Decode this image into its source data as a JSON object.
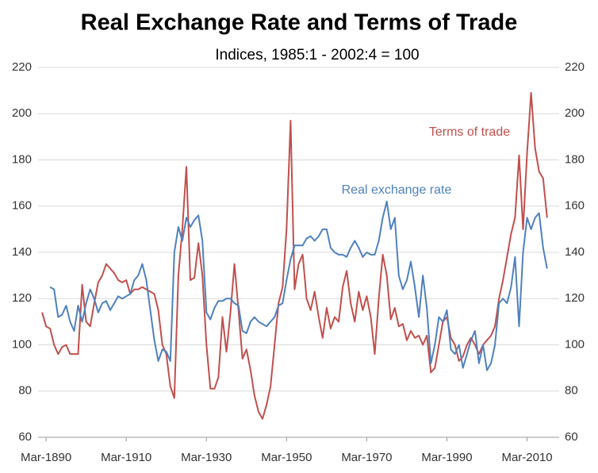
{
  "chart_data": {
    "type": "line",
    "title": "Real Exchange Rate and Terms of Trade",
    "subtitle": "Indices, 1985:1 - 2002:4 = 100",
    "x": [
      1889,
      1890,
      1891,
      1892,
      1893,
      1894,
      1895,
      1896,
      1897,
      1898,
      1899,
      1900,
      1901,
      1902,
      1903,
      1904,
      1905,
      1906,
      1907,
      1908,
      1909,
      1910,
      1911,
      1912,
      1913,
      1914,
      1915,
      1916,
      1917,
      1918,
      1919,
      1920,
      1921,
      1922,
      1923,
      1924,
      1925,
      1926,
      1927,
      1928,
      1929,
      1930,
      1931,
      1932,
      1933,
      1934,
      1935,
      1936,
      1937,
      1938,
      1939,
      1940,
      1941,
      1942,
      1943,
      1944,
      1945,
      1946,
      1947,
      1948,
      1949,
      1950,
      1951,
      1952,
      1953,
      1954,
      1955,
      1956,
      1957,
      1958,
      1959,
      1960,
      1961,
      1962,
      1963,
      1964,
      1965,
      1966,
      1967,
      1968,
      1969,
      1970,
      1971,
      1972,
      1973,
      1974,
      1975,
      1976,
      1977,
      1978,
      1979,
      1980,
      1981,
      1982,
      1983,
      1984,
      1985,
      1986,
      1987,
      1988,
      1989,
      1990,
      1991,
      1992,
      1993,
      1994,
      1995,
      1996,
      1997,
      1998,
      1999,
      2000,
      2001,
      2002,
      2003,
      2004,
      2005,
      2006,
      2007,
      2008,
      2009,
      2010,
      2011,
      2012,
      2013,
      2014,
      2015
    ],
    "series": [
      {
        "name": "Terms of trade",
        "color": "#c0504d",
        "values": [
          114,
          108,
          107,
          100,
          96,
          99,
          100,
          96,
          96,
          96,
          126,
          110,
          108,
          118,
          127,
          130,
          135,
          133,
          131,
          128,
          127,
          128,
          122,
          124,
          124,
          125,
          124,
          123,
          122,
          115,
          100,
          96,
          82,
          77,
          130,
          150,
          177,
          128,
          129,
          144,
          130,
          100,
          81,
          81,
          86,
          112,
          97,
          114,
          135,
          115,
          94,
          98,
          89,
          78,
          71,
          68,
          74,
          82,
          100,
          118,
          125,
          150,
          197,
          124,
          135,
          139,
          120,
          115,
          123,
          112,
          103,
          116,
          107,
          112,
          110,
          125,
          132,
          118,
          110,
          123,
          115,
          121,
          112,
          96,
          120,
          139,
          130,
          111,
          116,
          108,
          109,
          102,
          106,
          103,
          104,
          100,
          104,
          88,
          90,
          100,
          110,
          112,
          103,
          100,
          93,
          95,
          100,
          103,
          100,
          96,
          100,
          102,
          104,
          108,
          120,
          128,
          138,
          148,
          155,
          182,
          150,
          183,
          209,
          185,
          175,
          172,
          155
        ]
      },
      {
        "name": "Real exchange rate",
        "color": "#4f81bd",
        "values": [
          null,
          null,
          125,
          124,
          112,
          113,
          117,
          110,
          106,
          117,
          110,
          118,
          124,
          120,
          114,
          118,
          119,
          115,
          118,
          121,
          120,
          121,
          122,
          128,
          130,
          135,
          128,
          115,
          102,
          93,
          98,
          97,
          93,
          140,
          151,
          145,
          155,
          151,
          154,
          156,
          145,
          114,
          111,
          116,
          119,
          119,
          120,
          120,
          118,
          117,
          106,
          105,
          110,
          112,
          110,
          109,
          108,
          110,
          112,
          117,
          118,
          128,
          137,
          143,
          143,
          143,
          146,
          147,
          145,
          147,
          150,
          150,
          142,
          140,
          139,
          139,
          138,
          142,
          145,
          142,
          138,
          140,
          139,
          139,
          145,
          155,
          162,
          150,
          155,
          130,
          124,
          128,
          136,
          125,
          112,
          130,
          116,
          92,
          100,
          112,
          110,
          115,
          98,
          96,
          100,
          90,
          96,
          102,
          106,
          92,
          100,
          89,
          92,
          100,
          118,
          120,
          118,
          125,
          138,
          108,
          140,
          155,
          150,
          155,
          157,
          142,
          133
        ]
      }
    ],
    "xlim": [
      1888,
      2018
    ],
    "xticks": [
      {
        "value": 1890,
        "label": "Mar-1890"
      },
      {
        "value": 1910,
        "label": "Mar-1910"
      },
      {
        "value": 1930,
        "label": "Mar-1930"
      },
      {
        "value": 1950,
        "label": "Mar-1950"
      },
      {
        "value": 1970,
        "label": "Mar-1970"
      },
      {
        "value": 1990,
        "label": "Mar-1990"
      },
      {
        "value": 2010,
        "label": "Mar-2010"
      }
    ],
    "ylim": [
      60,
      220
    ],
    "yticks": [
      60,
      80,
      100,
      120,
      140,
      160,
      180,
      200,
      220
    ],
    "y2lim": [
      60,
      220
    ],
    "y2ticks": [
      60,
      80,
      100,
      120,
      140,
      160,
      180,
      200,
      220
    ],
    "grid": true
  }
}
